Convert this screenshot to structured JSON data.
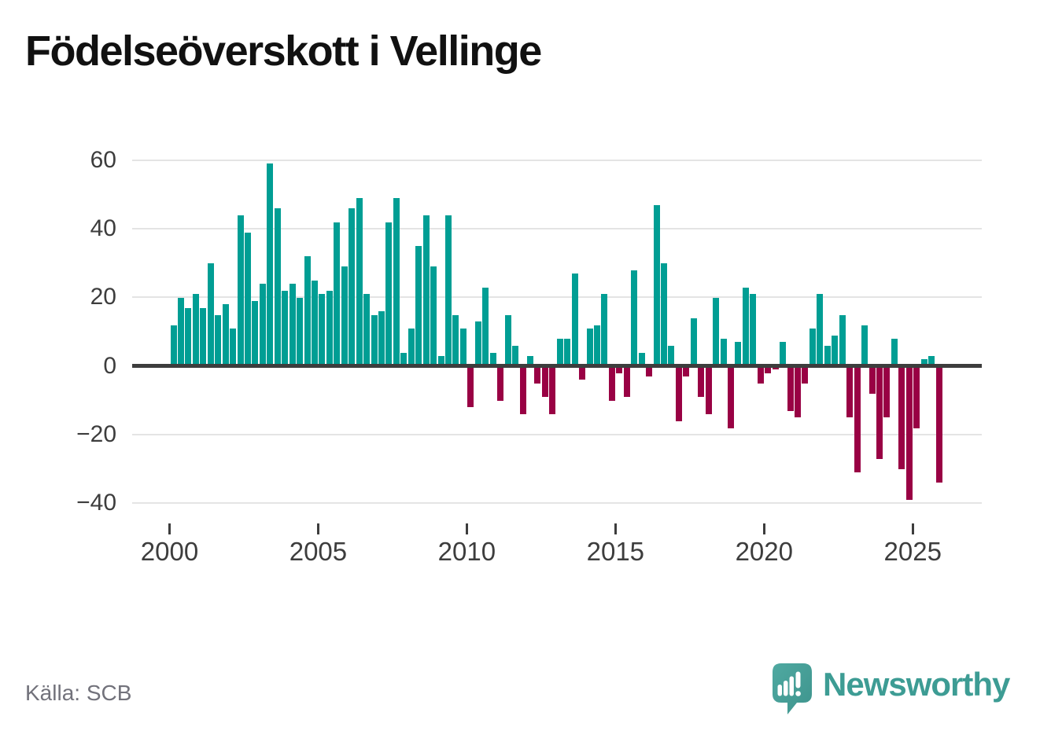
{
  "title": "Födelseöverskott i Vellinge",
  "source": "Källa: SCB",
  "branding": {
    "logo_text": "Newsworthy",
    "logo_icon": "newsworthy-speech-bubble-chart-icon"
  },
  "colors": {
    "positive": "#009e94",
    "negative": "#990144",
    "grid": "#e4e4e4",
    "zero_line": "#3d3d3d",
    "axis_text": "#3d3d3d",
    "title_text": "#111111",
    "source_text": "#72727b",
    "logo": "#3d9c94"
  },
  "chart_data": {
    "type": "bar",
    "title": "Födelseöverskott i Vellinge",
    "frequency": "quarterly",
    "x_start": "2000Q1",
    "x_end": "2025Q4",
    "values": [
      12,
      20,
      17,
      21,
      17,
      30,
      15,
      18,
      11,
      44,
      39,
      19,
      24,
      59,
      46,
      22,
      24,
      20,
      32,
      25,
      21,
      22,
      42,
      29,
      46,
      49,
      21,
      15,
      16,
      42,
      49,
      4,
      11,
      35,
      44,
      29,
      3,
      44,
      15,
      11,
      -12,
      13,
      23,
      4,
      -10,
      15,
      6,
      -14,
      3,
      -5,
      -9,
      -14,
      8,
      8,
      27,
      -4,
      11,
      12,
      21,
      -10,
      -2,
      -9,
      28,
      4,
      -3,
      47,
      30,
      6,
      -16,
      -3,
      14,
      -9,
      -14,
      20,
      8,
      -18,
      7,
      23,
      21,
      -5,
      -2,
      -1,
      7,
      -13,
      -15,
      -5,
      11,
      21,
      6,
      9,
      15,
      -15,
      -31,
      12,
      -8,
      -27,
      -15,
      8,
      -30,
      -39,
      -18,
      2,
      3,
      -34
    ],
    "yticks": [
      60,
      40,
      20,
      0,
      -20,
      -40
    ],
    "xticks": [
      2000,
      2005,
      2010,
      2015,
      2020,
      2025
    ],
    "ylim": [
      -44,
      62
    ],
    "grid": true,
    "legend": false,
    "positive_color": "#009e94",
    "negative_color": "#990144"
  }
}
